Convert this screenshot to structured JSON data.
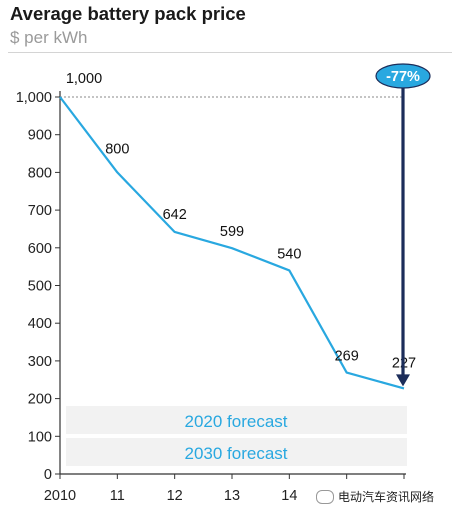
{
  "chart_data": {
    "type": "line",
    "title": "Average battery pack price",
    "subtitle": "$ per kWh",
    "x_ticks": [
      "2010",
      "11",
      "12",
      "13",
      "14",
      "",
      ""
    ],
    "y_ticks": [
      "0",
      "100",
      "200",
      "300",
      "400",
      "500",
      "600",
      "700",
      "800",
      "900",
      "1,000"
    ],
    "ylim": [
      0,
      1000
    ],
    "series": [
      {
        "x": [
          2010,
          2011,
          2012,
          2013,
          2014,
          2015,
          2016
        ],
        "values": [
          1000,
          800,
          642,
          599,
          540,
          269,
          227
        ],
        "labels": [
          "1,000",
          "800",
          "642",
          "599",
          "540",
          "269",
          "227"
        ],
        "color": "#29a8e0"
      }
    ],
    "forecast_bands": [
      {
        "label": "2020 forecast"
      },
      {
        "label": "2030 forecast"
      }
    ],
    "change_badge": "-77%",
    "grid": false
  },
  "watermark": "电动汽车资讯网络"
}
